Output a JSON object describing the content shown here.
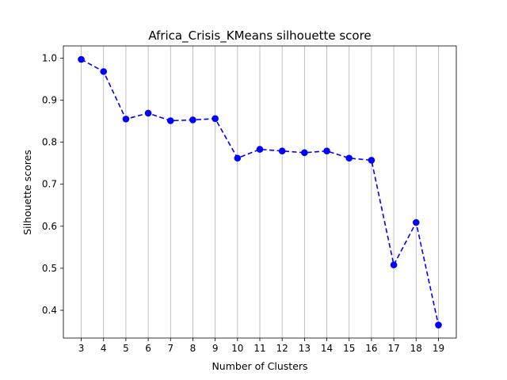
{
  "chart_data": {
    "type": "line",
    "title": "Africa_Crisis_KMeans silhouette score",
    "xlabel": "Number of Clusters",
    "ylabel": "Silhouette scores",
    "x": [
      3,
      4,
      5,
      6,
      7,
      8,
      9,
      10,
      11,
      12,
      13,
      14,
      15,
      16,
      17,
      18,
      19
    ],
    "series": [
      {
        "name": "silhouette score",
        "values": [
          0.997,
          0.968,
          0.855,
          0.869,
          0.851,
          0.853,
          0.856,
          0.762,
          0.783,
          0.779,
          0.775,
          0.779,
          0.762,
          0.757,
          0.508,
          0.609,
          0.365
        ]
      }
    ],
    "xlim": [
      2.2,
      19.8
    ],
    "ylim": [
      0.334,
      1.029
    ],
    "xticks": [
      "3",
      "4",
      "5",
      "6",
      "7",
      "8",
      "9",
      "10",
      "11",
      "12",
      "13",
      "14",
      "15",
      "16",
      "17",
      "18",
      "19"
    ],
    "yticks": [
      0.4,
      0.5,
      0.6,
      0.7,
      0.8,
      0.9,
      1.0
    ],
    "ytick_labels": [
      "0.4",
      "0.5",
      "0.6",
      "0.7",
      "0.8",
      "0.9",
      "1.0"
    ],
    "grid": "vertical",
    "line_style": "dashed",
    "marker": "circle",
    "colors": {
      "line": "#0000ff",
      "grid": "#b0b0b0",
      "axes": "#000000"
    }
  }
}
